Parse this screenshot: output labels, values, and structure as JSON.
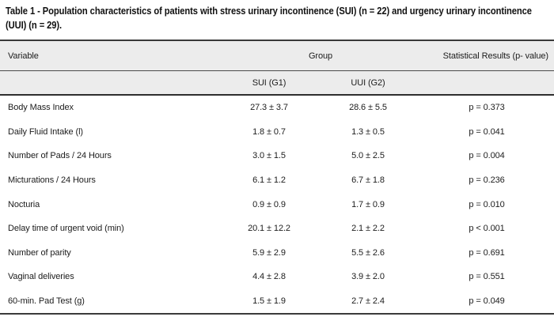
{
  "title": {
    "line1": "Table 1 - Population characteristics of patients with stress urinary incontinence (SUI) (n = 22) and urgency urinary incontinence",
    "line2": "(UUI) (n = 29)."
  },
  "table": {
    "columns": {
      "variable": "Variable",
      "group": "Group",
      "statistical": "Statistical Results (p- value)",
      "group_sub": [
        "SUI (G1)",
        "UUI (G2)"
      ]
    },
    "rows": [
      {
        "variable": "Body Mass Index",
        "sui": "27.3 ± 3.7",
        "uui": "28.6 ± 5.5",
        "p": "p = 0.373"
      },
      {
        "variable": "Daily Fluid Intake (l)",
        "sui": "1.8 ± 0.7",
        "uui": "1.3 ± 0.5",
        "p": "p = 0.041"
      },
      {
        "variable": "Number of Pads / 24 Hours",
        "sui": "3.0 ± 1.5",
        "uui": "5.0 ± 2.5",
        "p": "p = 0.004"
      },
      {
        "variable": "Micturations / 24 Hours",
        "sui": "6.1 ± 1.2",
        "uui": "6.7 ± 1.8",
        "p": "p = 0.236"
      },
      {
        "variable": "Nocturia",
        "sui": "0.9 ± 0.9",
        "uui": "1.7 ± 0.9",
        "p": "p = 0.010"
      },
      {
        "variable": "Delay time of urgent void (min)",
        "sui": "20.1 ± 12.2",
        "uui": "2.1 ± 2.2",
        "p": "p < 0.001"
      },
      {
        "variable": "Number of parity",
        "sui": "5.9 ± 2.9",
        "uui": "5.5 ± 2.6",
        "p": "p = 0.691"
      },
      {
        "variable": "Vaginal deliveries",
        "sui": "4.4 ± 2.8",
        "uui": "3.9 ± 2.0",
        "p": "p = 0.551"
      },
      {
        "variable": "60-min. Pad Test (g)",
        "sui": "1.5 ± 1.9",
        "uui": "2.7 ± 2.4",
        "p": "p = 0.049"
      }
    ]
  },
  "colors": {
    "header_bg": "#ececec",
    "border_dark": "#3a3a3a",
    "text": "#1c1c1c"
  }
}
